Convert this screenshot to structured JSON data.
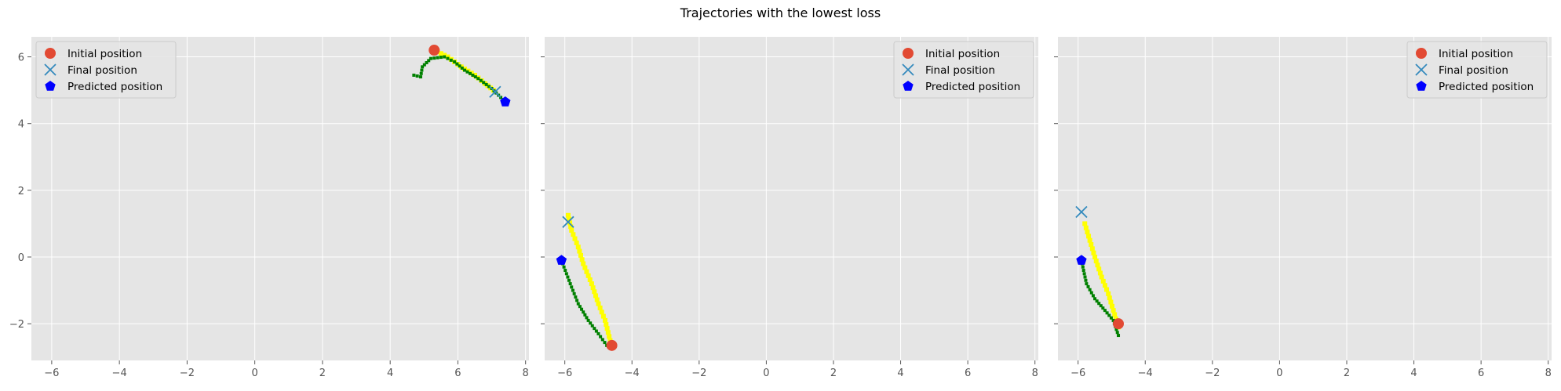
{
  "figure": {
    "title": "Trajectories with the lowest loss"
  },
  "legend_labels": {
    "initial": "Initial position",
    "final": "Final position",
    "predicted": "Predicted position"
  },
  "colors": {
    "plot_bg": "#e5e5e5",
    "grid": "#ffffff",
    "tick_text": "#555555",
    "initial": "#e24a33",
    "final": "#348abd",
    "predicted": "#0000ff",
    "trajectory_true": "#ffff00",
    "trajectory_pred": "#008000"
  },
  "chart_data": [
    {
      "type": "scatter",
      "xlim": [
        -6.6,
        8.1
      ],
      "ylim": [
        -3.1,
        6.6
      ],
      "xticks": [
        -6,
        -4,
        -2,
        0,
        2,
        4,
        6,
        8
      ],
      "yticks": [
        -2,
        0,
        2,
        4,
        6
      ],
      "show_yticklabels": true,
      "grid": true,
      "legend_position": "upper-left",
      "initial": [
        5.3,
        6.2
      ],
      "final": [
        7.1,
        4.95
      ],
      "predicted": [
        7.4,
        4.65
      ],
      "true_trajectory": [
        [
          5.3,
          6.2
        ],
        [
          5.7,
          6.0
        ],
        [
          6.1,
          5.7
        ],
        [
          6.5,
          5.45
        ],
        [
          6.8,
          5.2
        ],
        [
          7.05,
          5.0
        ]
      ],
      "predicted_trajectory": [
        [
          4.7,
          5.45
        ],
        [
          4.9,
          5.4
        ],
        [
          4.95,
          5.7
        ],
        [
          5.2,
          5.95
        ],
        [
          5.6,
          6.0
        ],
        [
          5.9,
          5.85
        ],
        [
          6.2,
          5.6
        ],
        [
          6.6,
          5.35
        ],
        [
          7.0,
          5.05
        ],
        [
          7.4,
          4.65
        ]
      ]
    },
    {
      "type": "scatter",
      "xlim": [
        -6.6,
        8.1
      ],
      "ylim": [
        -3.1,
        6.6
      ],
      "xticks": [
        -6,
        -4,
        -2,
        0,
        2,
        4,
        6,
        8
      ],
      "yticks": [
        -2,
        0,
        2,
        4,
        6
      ],
      "show_yticklabels": false,
      "grid": true,
      "legend_position": "upper-right",
      "initial": [
        -4.6,
        -2.65
      ],
      "final": [
        -5.9,
        1.05
      ],
      "predicted": [
        -6.1,
        -0.1
      ],
      "true_trajectory": [
        [
          -4.65,
          -2.5
        ],
        [
          -4.8,
          -1.9
        ],
        [
          -5.0,
          -1.4
        ],
        [
          -5.2,
          -0.8
        ],
        [
          -5.45,
          -0.2
        ],
        [
          -5.6,
          0.3
        ],
        [
          -5.8,
          0.8
        ],
        [
          -5.9,
          1.25
        ]
      ],
      "predicted_trajectory": [
        [
          -4.75,
          -2.65
        ],
        [
          -5.0,
          -2.3
        ],
        [
          -5.3,
          -1.9
        ],
        [
          -5.6,
          -1.4
        ],
        [
          -5.8,
          -0.9
        ],
        [
          -5.95,
          -0.5
        ],
        [
          -6.1,
          -0.1
        ]
      ]
    },
    {
      "type": "scatter",
      "xlim": [
        -6.6,
        8.1
      ],
      "ylim": [
        -3.1,
        6.6
      ],
      "xticks": [
        -6,
        -4,
        -2,
        0,
        2,
        4,
        6,
        8
      ],
      "yticks": [
        -2,
        0,
        2,
        4,
        6
      ],
      "show_yticklabels": false,
      "grid": true,
      "legend_position": "upper-right",
      "initial": [
        -4.8,
        -2.0
      ],
      "final": [
        -5.9,
        1.35
      ],
      "predicted": [
        -5.9,
        -0.1
      ],
      "true_trajectory": [
        [
          -4.8,
          -2.1
        ],
        [
          -4.95,
          -1.6
        ],
        [
          -5.1,
          -1.1
        ],
        [
          -5.3,
          -0.6
        ],
        [
          -5.5,
          0.0
        ],
        [
          -5.65,
          0.5
        ],
        [
          -5.8,
          1.0
        ]
      ],
      "predicted_trajectory": [
        [
          -4.8,
          -2.35
        ],
        [
          -4.95,
          -1.9
        ],
        [
          -5.2,
          -1.6
        ],
        [
          -5.5,
          -1.25
        ],
        [
          -5.75,
          -0.8
        ],
        [
          -5.9,
          -0.1
        ]
      ]
    }
  ]
}
